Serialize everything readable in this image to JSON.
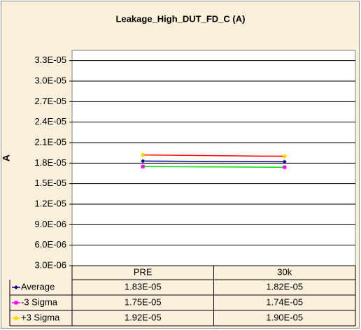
{
  "chart_data": {
    "type": "line",
    "title": "Leakage_High_DUT_FD_C (A)",
    "y_label": "A",
    "categories": [
      "PRE",
      "30k"
    ],
    "series": [
      {
        "name": "Average",
        "color": "#000080",
        "marker_color": "#000080",
        "marker": "diamond",
        "values": [
          1.83e-05,
          1.82e-05
        ],
        "value_labels": [
          "1.83E-05",
          "1.82E-05"
        ]
      },
      {
        "name": "-3 Sigma",
        "color": "#00e000",
        "marker_color": "#ff00ff",
        "marker": "square",
        "values": [
          1.75e-05,
          1.74e-05
        ],
        "value_labels": [
          "1.75E-05",
          "1.74E-05"
        ]
      },
      {
        "name": "+3 Sigma",
        "color": "#ff0000",
        "marker_color": "#ffd700",
        "marker": "square",
        "values": [
          1.92e-05,
          1.9e-05
        ],
        "value_labels": [
          "1.92E-05",
          "1.90E-05"
        ]
      }
    ],
    "ylim": [
      3e-06,
      3.45e-05
    ],
    "yticks": [
      {
        "value": 3e-06,
        "label": "3.0E-06"
      },
      {
        "value": 6e-06,
        "label": "6.0E-06"
      },
      {
        "value": 9e-06,
        "label": "9.0E-06"
      },
      {
        "value": 1.2e-05,
        "label": "1.2E-05"
      },
      {
        "value": 1.5e-05,
        "label": "1.5E-05"
      },
      {
        "value": 1.8e-05,
        "label": "1.8E-05"
      },
      {
        "value": 2.1e-05,
        "label": "2.1E-05"
      },
      {
        "value": 2.4e-05,
        "label": "2.4E-05"
      },
      {
        "value": 2.7e-05,
        "label": "2.7E-05"
      },
      {
        "value": 3e-05,
        "label": "3.0E-05"
      },
      {
        "value": 3.3e-05,
        "label": "3.3E-05"
      }
    ],
    "grid": true,
    "data_table": true
  }
}
